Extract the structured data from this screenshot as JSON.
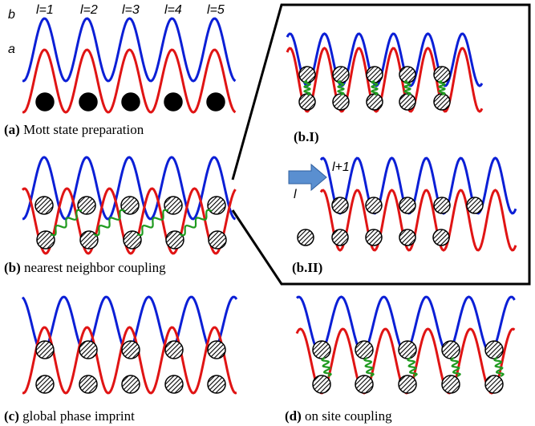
{
  "colors": {
    "well_b": "#0b1fd6",
    "well_a": "#e01414",
    "spring": "#1f9a1f",
    "arrow_fill": "#5a8fd0",
    "arrow_stroke": "#2f5f9f",
    "frame": "#000000"
  },
  "site_labels": [
    "l=1",
    "l=2",
    "l=3",
    "l=4",
    "l=5"
  ],
  "level_labels": {
    "b": "b",
    "a": "a"
  },
  "panels": {
    "a": {
      "tag": "(a)",
      "text": " Mott state preparation"
    },
    "b": {
      "tag": "(b)",
      "text": " nearest neighbor coupling"
    },
    "bI": {
      "tag": "(b.I)",
      "text": ""
    },
    "bII": {
      "tag": "(b.II)",
      "text": "",
      "upper_label": "l+1",
      "lower_label": "l",
      "arrow_icon": "right-arrow-icon"
    },
    "c": {
      "tag": "(c)",
      "text": " global phase imprint"
    },
    "d": {
      "tag": "(d)",
      "text": " on site coupling"
    }
  }
}
